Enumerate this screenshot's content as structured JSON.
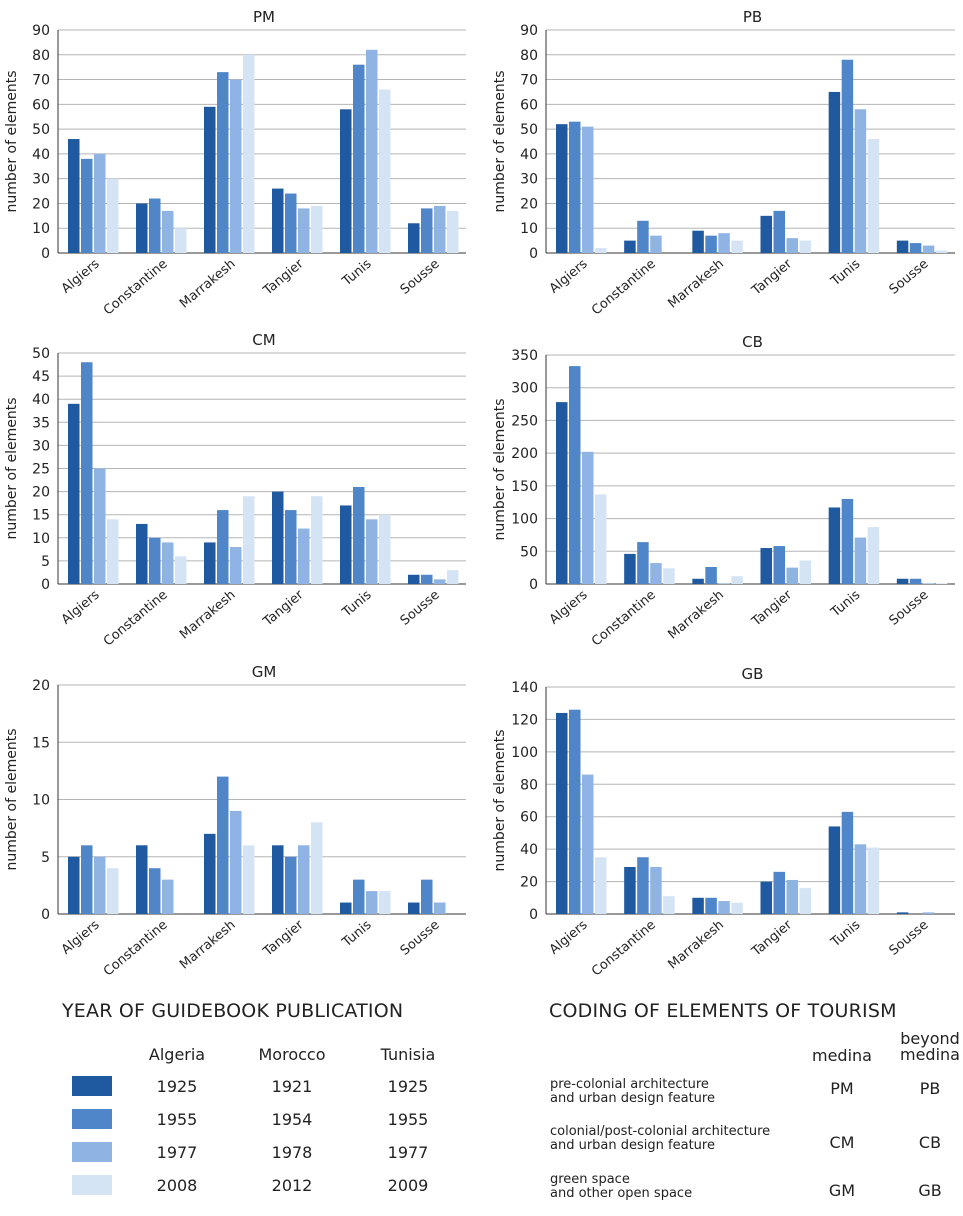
{
  "colors": [
    "#1f5aa0",
    "#4f86c9",
    "#8fb4e3",
    "#d5e4f5"
  ],
  "chart_data": [
    {
      "type": "bar",
      "title": "PM",
      "ylabel": "number of elements",
      "ylim": [
        0,
        90
      ],
      "yticks": [
        0,
        10,
        20,
        30,
        40,
        50,
        60,
        70,
        80,
        90
      ],
      "categories": [
        "Algiers",
        "Constantine",
        "Marrakesh",
        "Tangier",
        "Tunis",
        "Sousse"
      ],
      "values": [
        [
          46,
          38,
          40,
          30
        ],
        [
          20,
          22,
          17,
          10
        ],
        [
          59,
          73,
          70,
          80
        ],
        [
          26,
          24,
          18,
          19
        ],
        [
          58,
          76,
          82,
          66
        ],
        [
          12,
          18,
          19,
          17
        ]
      ]
    },
    {
      "type": "bar",
      "title": "PB",
      "ylabel": "number of elements",
      "ylim": [
        0,
        90
      ],
      "yticks": [
        0,
        10,
        20,
        30,
        40,
        50,
        60,
        70,
        80,
        90
      ],
      "categories": [
        "Algiers",
        "Constantine",
        "Marrakesh",
        "Tangier",
        "Tunis",
        "Sousse"
      ],
      "values": [
        [
          52,
          53,
          51,
          2
        ],
        [
          5,
          13,
          7,
          0
        ],
        [
          9,
          7,
          8,
          5
        ],
        [
          15,
          17,
          6,
          5
        ],
        [
          65,
          78,
          58,
          46
        ],
        [
          5,
          4,
          3,
          1
        ]
      ]
    },
    {
      "type": "bar",
      "title": "CM",
      "ylabel": "number of elements",
      "ylim": [
        0,
        50
      ],
      "yticks": [
        0,
        5,
        10,
        15,
        20,
        25,
        30,
        35,
        40,
        45,
        50
      ],
      "categories": [
        "Algiers",
        "Constantine",
        "Marrakesh",
        "Tangier",
        "Tunis",
        "Sousse"
      ],
      "values": [
        [
          39,
          48,
          25,
          14
        ],
        [
          13,
          10,
          9,
          6
        ],
        [
          9,
          16,
          8,
          19
        ],
        [
          20,
          16,
          12,
          19
        ],
        [
          17,
          21,
          14,
          15
        ],
        [
          2,
          2,
          1,
          3
        ]
      ]
    },
    {
      "type": "bar",
      "title": "CB",
      "ylabel": "number of elements",
      "ylim": [
        0,
        350
      ],
      "yticks": [
        0,
        50,
        100,
        150,
        200,
        250,
        300,
        350
      ],
      "categories": [
        "Algiers",
        "Constantine",
        "Marrakesh",
        "Tangier",
        "Tunis",
        "Sousse"
      ],
      "values": [
        [
          278,
          333,
          202,
          137
        ],
        [
          46,
          64,
          32,
          24
        ],
        [
          8,
          26,
          1,
          12
        ],
        [
          55,
          58,
          25,
          36
        ],
        [
          117,
          130,
          71,
          87
        ],
        [
          8,
          8,
          1,
          1
        ]
      ]
    },
    {
      "type": "bar",
      "title": "GM",
      "ylabel": "number of elements",
      "ylim": [
        0,
        20
      ],
      "yticks": [
        0,
        5,
        10,
        15,
        20
      ],
      "categories": [
        "Algiers",
        "Constantine",
        "Marrakesh",
        "Tangier",
        "Tunis",
        "Sousse"
      ],
      "values": [
        [
          5,
          6,
          5,
          4
        ],
        [
          6,
          4,
          3,
          0
        ],
        [
          7,
          12,
          9,
          6
        ],
        [
          6,
          5,
          6,
          8
        ],
        [
          1,
          3,
          2,
          2
        ],
        [
          1,
          3,
          1,
          0
        ]
      ]
    },
    {
      "type": "bar",
      "title": "GB",
      "ylabel": "number of elements",
      "ylim": [
        0,
        140
      ],
      "yticks": [
        0,
        20,
        40,
        60,
        80,
        100,
        120,
        140
      ],
      "categories": [
        "Algiers",
        "Constantine",
        "Marrakesh",
        "Tangier",
        "Tunis",
        "Sousse"
      ],
      "values": [
        [
          124,
          126,
          86,
          35
        ],
        [
          29,
          35,
          29,
          11
        ],
        [
          10,
          10,
          8,
          7
        ],
        [
          20,
          26,
          21,
          16
        ],
        [
          54,
          63,
          43,
          41
        ],
        [
          1,
          0,
          1,
          0
        ]
      ]
    }
  ],
  "legend": {
    "year_title": "YEAR OF GUIDEBOOK PUBLICATION",
    "countries": [
      "Algeria",
      "Morocco",
      "Tunisia"
    ],
    "rows": [
      [
        "1925",
        "1921",
        "1925"
      ],
      [
        "1955",
        "1954",
        "1955"
      ],
      [
        "1977",
        "1978",
        "1977"
      ],
      [
        "2008",
        "2012",
        "2009"
      ]
    ]
  },
  "coding": {
    "title": "CODING OF ELEMENTS OF TOURISM",
    "col_medina": "medina",
    "col_beyond": "beyond\nmedina",
    "rows": [
      {
        "desc": "pre-colonial architecture\nand urban design feature",
        "medina": "PM",
        "beyond": "PB"
      },
      {
        "desc": "colonial/post-colonial architecture\nand urban design feature",
        "medina": "CM",
        "beyond": "CB"
      },
      {
        "desc": "green space\nand other open space",
        "medina": "GM",
        "beyond": "GB"
      }
    ]
  }
}
